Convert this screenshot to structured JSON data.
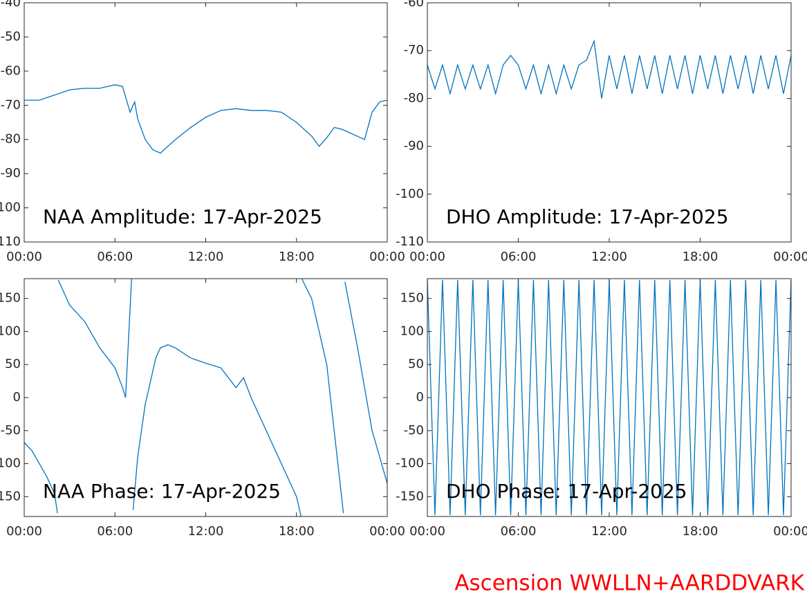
{
  "chart_data": [
    {
      "type": "line",
      "title": "NAA Amplitude: 17-Apr-2025",
      "color": "#0072bd",
      "xlim": [
        0,
        24
      ],
      "xticks": [
        {
          "value": 0,
          "label": "00:00"
        },
        {
          "value": 6,
          "label": "06:00"
        },
        {
          "value": 12,
          "label": "12:00"
        },
        {
          "value": 18,
          "label": "18:00"
        },
        {
          "value": 24,
          "label": "00:00"
        }
      ],
      "ylim": [
        -110,
        -40
      ],
      "yticks": [
        -110,
        -100,
        -90,
        -80,
        -70,
        -60,
        -50,
        -40
      ],
      "x": [
        0,
        1,
        2,
        3,
        4,
        5,
        6,
        6.5,
        7,
        7.3,
        7.5,
        8,
        8.5,
        9,
        10,
        11,
        12,
        13,
        14,
        15,
        16,
        17,
        18,
        19,
        19.5,
        20,
        20.5,
        21,
        22,
        22.5,
        23,
        23.5,
        24
      ],
      "values": [
        -68.5,
        -68.5,
        -67,
        -65.5,
        -65,
        -65,
        -64,
        -64.5,
        -72,
        -69,
        -74,
        -80,
        -83,
        -84,
        -80,
        -76.5,
        -73.5,
        -71.5,
        -71,
        -71.5,
        -71.5,
        -72,
        -75,
        -79,
        -82,
        -79.5,
        -76.5,
        -77,
        -79,
        -80,
        -72,
        -69,
        -68.5
      ]
    },
    {
      "type": "line",
      "title": "DHO Amplitude: 17-Apr-2025",
      "color": "#0072bd",
      "xlim": [
        0,
        24
      ],
      "xticks": [
        {
          "value": 0,
          "label": "00:00"
        },
        {
          "value": 6,
          "label": "06:00"
        },
        {
          "value": 12,
          "label": "12:00"
        },
        {
          "value": 18,
          "label": "18:00"
        },
        {
          "value": 24,
          "label": "00:00"
        }
      ],
      "ylim": [
        -110,
        -60
      ],
      "yticks": [
        -110,
        -100,
        -90,
        -80,
        -70,
        -60
      ],
      "x": [
        0,
        0.5,
        1,
        1.5,
        2,
        2.5,
        3,
        3.5,
        4,
        4.5,
        5,
        5.5,
        6,
        6.5,
        7,
        7.5,
        8,
        8.5,
        9,
        9.5,
        10,
        10.5,
        11,
        11.5,
        12,
        12.5,
        13,
        13.5,
        14,
        14.5,
        15,
        15.5,
        16,
        16.5,
        17,
        17.5,
        18,
        18.5,
        19,
        19.5,
        20,
        20.5,
        21,
        21.5,
        22,
        22.5,
        23,
        23.5,
        24
      ],
      "values": [
        -73,
        -78,
        -73,
        -79,
        -73,
        -78,
        -73,
        -78,
        -73,
        -79,
        -73,
        -71,
        -73,
        -78,
        -73,
        -79,
        -73,
        -79,
        -73,
        -78,
        -73,
        -72,
        -68,
        -80,
        -71,
        -78,
        -71,
        -79,
        -71,
        -78,
        -71,
        -79,
        -71,
        -78,
        -71,
        -79,
        -71,
        -78,
        -71,
        -79,
        -71,
        -78,
        -71,
        -79,
        -71,
        -78,
        -71,
        -79,
        -71
      ]
    },
    {
      "type": "line",
      "title": "NAA Phase: 17-Apr-2025",
      "color": "#0072bd",
      "xlim": [
        0,
        24
      ],
      "xticks": [
        {
          "value": 0,
          "label": "00:00"
        },
        {
          "value": 6,
          "label": "06:00"
        },
        {
          "value": 12,
          "label": "12:00"
        },
        {
          "value": 18,
          "label": "18:00"
        },
        {
          "value": 24,
          "label": "00:00"
        }
      ],
      "ylim": [
        -180,
        180
      ],
      "yticks": [
        -150,
        -100,
        -50,
        0,
        50,
        100,
        150
      ],
      "x": [
        0,
        0.5,
        1,
        1.5,
        2,
        2.2,
        2.22,
        2.25,
        3,
        4,
        5,
        6,
        6.5,
        6.7,
        7.1,
        7.15,
        7.2,
        7.5,
        8,
        8.3,
        8.7,
        9,
        9.5,
        10,
        11,
        12,
        13,
        14,
        14.5,
        15,
        16,
        17,
        18,
        18.3,
        18.32,
        18.35,
        19,
        20,
        21.1,
        21.15,
        21.2,
        22,
        23,
        24
      ],
      "values": [
        -68,
        -80,
        -100,
        -120,
        -145,
        -175,
        null,
        178,
        140,
        115,
        75,
        45,
        15,
        0,
        180,
        null,
        -170,
        -90,
        -10,
        20,
        60,
        75,
        80,
        75,
        60,
        52,
        45,
        15,
        30,
        0,
        -50,
        -100,
        -150,
        -180,
        null,
        180,
        150,
        50,
        -175,
        null,
        175,
        80,
        -50,
        -130
      ]
    },
    {
      "type": "line",
      "title": "DHO Phase: 17-Apr-2025",
      "color": "#0072bd",
      "xlim": [
        0,
        24
      ],
      "xticks": [
        {
          "value": 0,
          "label": "00:00"
        },
        {
          "value": 6,
          "label": "06:00"
        },
        {
          "value": 12,
          "label": "12:00"
        },
        {
          "value": 18,
          "label": "18:00"
        },
        {
          "value": 24,
          "label": "00:00"
        }
      ],
      "ylim": [
        -180,
        180
      ],
      "yticks": [
        -150,
        -100,
        -50,
        0,
        50,
        100,
        150
      ],
      "x": [
        0,
        0.5,
        1,
        1.5,
        2,
        2.5,
        3,
        3.5,
        4,
        4.5,
        5,
        5.5,
        6,
        6.5,
        7,
        7.5,
        8,
        8.5,
        9,
        9.5,
        10,
        10.5,
        11,
        11.5,
        12,
        12.5,
        13,
        13.5,
        14,
        14.5,
        15,
        15.5,
        16,
        16.5,
        17,
        17.5,
        18,
        18.5,
        19,
        19.5,
        20,
        20.5,
        21,
        21.5,
        22,
        22.5,
        23,
        23.5,
        24
      ],
      "values": [
        178,
        -178,
        178,
        -178,
        178,
        -178,
        178,
        -178,
        178,
        -178,
        178,
        -178,
        178,
        -178,
        178,
        -178,
        178,
        -178,
        178,
        -178,
        178,
        -178,
        178,
        -178,
        178,
        -178,
        178,
        -178,
        178,
        -178,
        178,
        -178,
        178,
        -178,
        178,
        -178,
        178,
        -178,
        178,
        -178,
        178,
        -178,
        178,
        -178,
        178,
        -178,
        178,
        -178,
        178
      ]
    }
  ],
  "footer": "Ascension WWLLN+AARDDVARK"
}
